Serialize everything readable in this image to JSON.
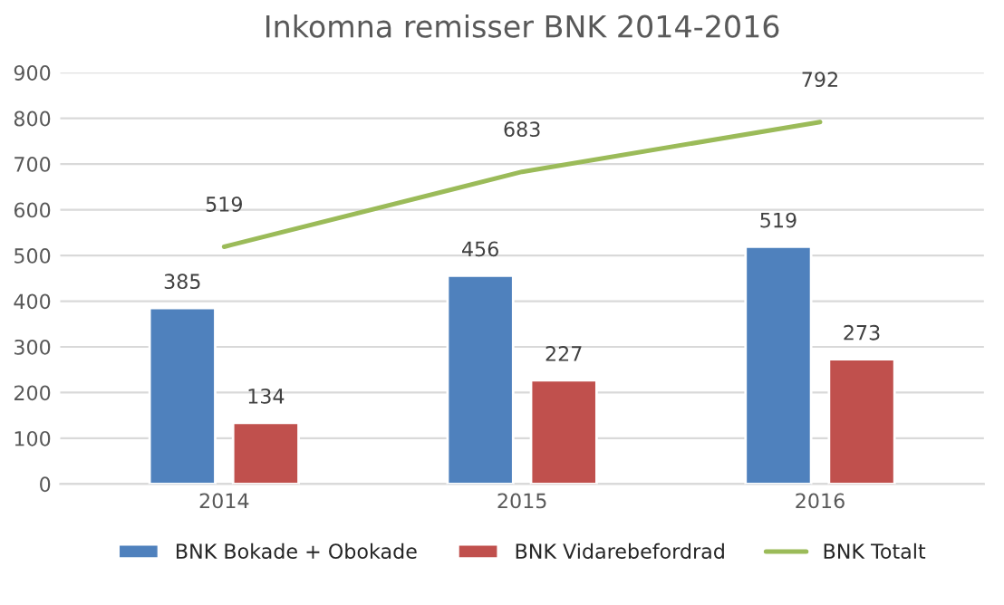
{
  "chart_data": {
    "type": "bar",
    "title": "Inkomna remisser BNK 2014-2016",
    "categories": [
      "2014",
      "2015",
      "2016"
    ],
    "series": [
      {
        "name": "BNK Bokade + Obokade",
        "color": "#4f81bd",
        "values": [
          385,
          456,
          519
        ]
      },
      {
        "name": "BNK Vidarebefordrad",
        "color": "#c0504d",
        "values": [
          134,
          227,
          273
        ]
      },
      {
        "name": "BNK Totalt",
        "type": "line",
        "color": "#9bbb59",
        "values": [
          519,
          683,
          792
        ]
      }
    ],
    "ylim": [
      0,
      900
    ],
    "yticks": [
      0,
      100,
      200,
      300,
      400,
      500,
      600,
      700,
      800,
      900
    ],
    "grid": "y",
    "legend": "bottom",
    "data_labels": true
  }
}
